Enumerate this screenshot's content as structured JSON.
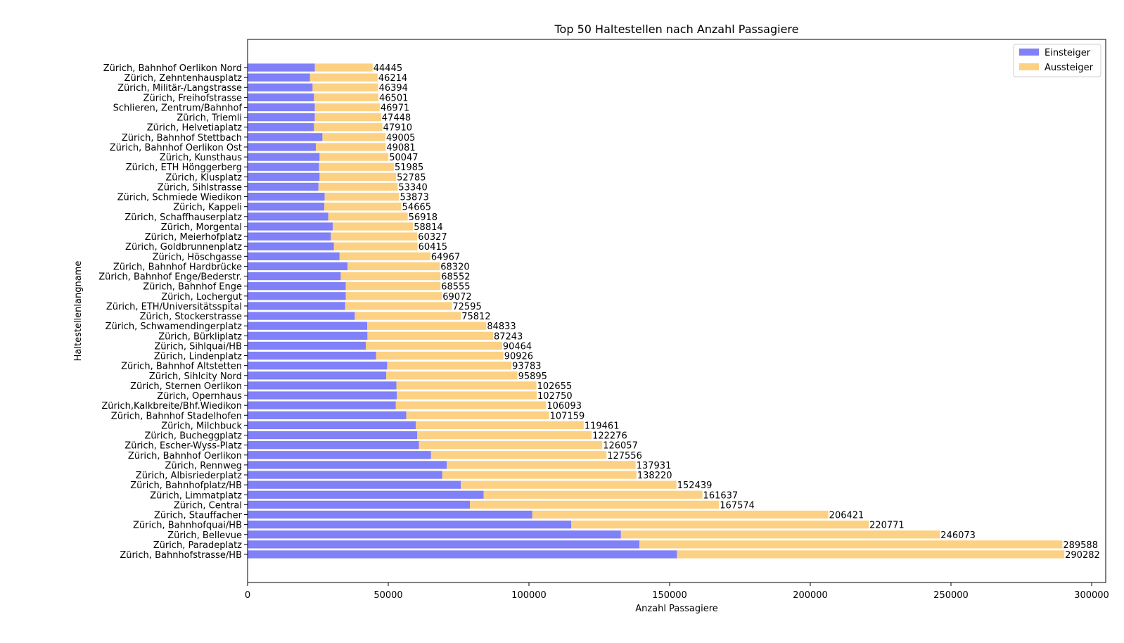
{
  "chart_data": {
    "type": "bar",
    "orientation": "horizontal",
    "stacked": true,
    "title": "Top 50 Haltestellen nach Anzahl Passagiere",
    "xlabel": "Anzahl Passagiere",
    "ylabel": "Haltestellenlangname",
    "xlim": [
      0,
      305000
    ],
    "xticks": [
      0,
      50000,
      100000,
      150000,
      200000,
      250000,
      300000
    ],
    "grid": false,
    "legend_position": "top-right",
    "categories": [
      "Zürich, Bahnhofstrasse/HB",
      "Zürich, Paradeplatz",
      "Zürich, Bellevue",
      "Zürich, Bahnhofquai/HB",
      "Zürich, Stauffacher",
      "Zürich, Central",
      "Zürich, Limmatplatz",
      "Zürich, Bahnhofplatz/HB",
      "Zürich, Albisriederplatz",
      "Zürich, Rennweg",
      "Zürich, Bahnhof Oerlikon",
      "Zürich, Escher-Wyss-Platz",
      "Zürich, Bucheggplatz",
      "Zürich, Milchbuck",
      "Zürich, Bahnhof Stadelhofen",
      "Zürich,Kalkbreite/Bhf.Wiedikon",
      "Zürich, Opernhaus",
      "Zürich, Sternen Oerlikon",
      "Zürich, Sihlcity Nord",
      "Zürich, Bahnhof Altstetten",
      "Zürich, Lindenplatz",
      "Zürich, Sihlquai/HB",
      "Zürich, Bürkliplatz",
      "Zürich, Schwamendingerplatz",
      "Zürich, Stockerstrasse",
      "Zürich, ETH/Universitätsspital",
      "Zürich, Lochergut",
      "Zürich, Bahnhof Enge",
      "Zürich, Bahnhof Enge/Bederstr.",
      "Zürich, Bahnhof Hardbrücke",
      "Zürich, Höschgasse",
      "Zürich, Goldbrunnenplatz",
      "Zürich, Meierhofplatz",
      "Zürich, Morgental",
      "Zürich, Schaffhauserplatz",
      "Zürich, Kappeli",
      "Zürich, Schmiede Wiedikon",
      "Zürich, Sihlstrasse",
      "Zürich, Klusplatz",
      "Zürich, ETH Hönggerberg",
      "Zürich, Kunsthaus",
      "Zürich, Bahnhof Oerlikon Ost",
      "Zürich, Bahnhof Stettbach",
      "Zürich, Helvetiaplatz",
      "Zürich, Triemli",
      "Schlieren, Zentrum/Bahnhof",
      "Zürich, Freihofstrasse",
      "Zürich, Militär-/Langstrasse",
      "Zürich, Zehntenhausplatz",
      "Zürich, Bahnhof Oerlikon Nord"
    ],
    "totals": [
      290282,
      289588,
      246073,
      220771,
      206421,
      167574,
      161637,
      152439,
      138220,
      137931,
      127556,
      126057,
      122276,
      119461,
      107159,
      106093,
      102750,
      102655,
      95895,
      93783,
      90926,
      90464,
      87243,
      84833,
      75812,
      72595,
      69072,
      68555,
      68552,
      68320,
      64967,
      60415,
      60327,
      58814,
      56918,
      54665,
      53873,
      53340,
      52785,
      51985,
      50047,
      49081,
      49005,
      47910,
      47448,
      46971,
      46501,
      46394,
      46214,
      44445
    ],
    "series": [
      {
        "name": "Einsteiger",
        "color": "#8080f8",
        "values": [
          152600,
          139300,
          132700,
          115000,
          101200,
          79000,
          83900,
          75800,
          69200,
          70800,
          65200,
          60900,
          60300,
          59800,
          56400,
          52700,
          53000,
          52900,
          49300,
          49600,
          45700,
          42000,
          42600,
          42500,
          38100,
          34700,
          34900,
          34900,
          33100,
          35500,
          32700,
          30700,
          29600,
          30300,
          28700,
          27300,
          27400,
          25200,
          25600,
          25400,
          25600,
          24300,
          26600,
          23600,
          23900,
          23900,
          23600,
          23100,
          22200,
          23900
        ]
      },
      {
        "name": "Aussteiger",
        "color": "#fdd183",
        "values": [
          137682,
          150288,
          113373,
          105771,
          105221,
          88574,
          77737,
          76639,
          69020,
          67131,
          62356,
          65157,
          61976,
          59661,
          50759,
          53393,
          49750,
          49755,
          46595,
          44183,
          45226,
          48464,
          44643,
          42333,
          37712,
          37895,
          34172,
          33655,
          35452,
          32820,
          32267,
          29715,
          30727,
          28514,
          28218,
          27365,
          26473,
          28140,
          27185,
          26585,
          24447,
          24781,
          22405,
          24310,
          23548,
          23071,
          22901,
          23294,
          24014,
          20545
        ]
      }
    ]
  }
}
